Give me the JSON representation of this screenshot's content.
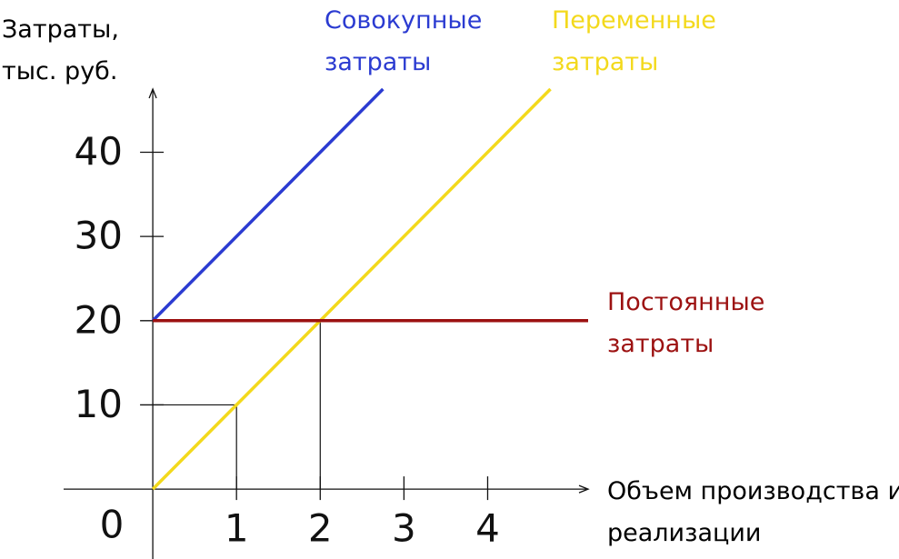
{
  "chart_data": {
    "type": "line",
    "y_label": "Затраты, тыс. руб.",
    "x_label": "Объем производства и реализации",
    "origin_label": 0,
    "xlim": [
      -1.065,
      5.2
    ],
    "ylim": [
      -8.3,
      47.5
    ],
    "xticks": [
      1,
      2,
      3,
      4
    ],
    "yticks": [
      10,
      20,
      30,
      40
    ],
    "series": [
      {
        "name": "Совокупные затраты",
        "color": "#2b3bd1",
        "x": [
          0,
          2.75
        ],
        "values": [
          20,
          47.5
        ]
      },
      {
        "name": "Переменные затраты",
        "color": "#f3d91c",
        "x": [
          0,
          4.75
        ],
        "values": [
          0,
          47.5
        ]
      },
      {
        "name": "Постоянные затраты",
        "color": "#9c1111",
        "x": [
          0,
          5.2
        ],
        "values": [
          20,
          20
        ]
      }
    ],
    "guides": [
      {
        "x": 1,
        "y": 10
      },
      {
        "x": 2,
        "y": 20
      }
    ]
  }
}
